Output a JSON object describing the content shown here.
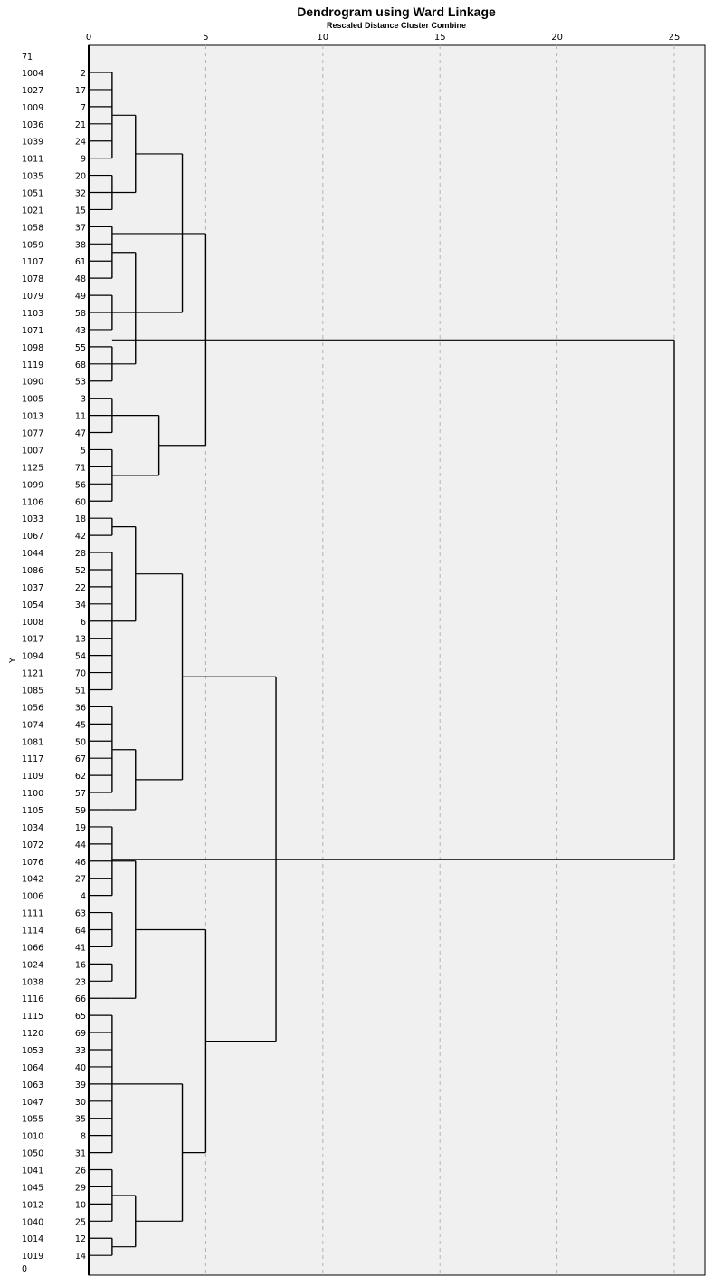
{
  "chart_data": {
    "type": "dendrogram",
    "title": "Dendrogram using Ward Linkage",
    "xlabel": "Rescaled Distance Cluster Combine",
    "ylabel": "Y",
    "xlim": [
      0,
      25
    ],
    "x_ticks": [
      "0",
      "5",
      "10",
      "15",
      "20",
      "25"
    ],
    "y_top_label": "71",
    "y_bottom_label": "0",
    "leaves": [
      {
        "id": "1004",
        "case": "2"
      },
      {
        "id": "1027",
        "case": "17"
      },
      {
        "id": "1009",
        "case": "7"
      },
      {
        "id": "1036",
        "case": "21"
      },
      {
        "id": "1039",
        "case": "24"
      },
      {
        "id": "1011",
        "case": "9"
      },
      {
        "id": "1035",
        "case": "20"
      },
      {
        "id": "1051",
        "case": "32"
      },
      {
        "id": "1021",
        "case": "15"
      },
      {
        "id": "1058",
        "case": "37"
      },
      {
        "id": "1059",
        "case": "38"
      },
      {
        "id": "1107",
        "case": "61"
      },
      {
        "id": "1078",
        "case": "48"
      },
      {
        "id": "1079",
        "case": "49"
      },
      {
        "id": "1103",
        "case": "58"
      },
      {
        "id": "1071",
        "case": "43"
      },
      {
        "id": "1098",
        "case": "55"
      },
      {
        "id": "1119",
        "case": "68"
      },
      {
        "id": "1090",
        "case": "53"
      },
      {
        "id": "1005",
        "case": "3"
      },
      {
        "id": "1013",
        "case": "11"
      },
      {
        "id": "1077",
        "case": "47"
      },
      {
        "id": "1007",
        "case": "5"
      },
      {
        "id": "1125",
        "case": "71"
      },
      {
        "id": "1099",
        "case": "56"
      },
      {
        "id": "1106",
        "case": "60"
      },
      {
        "id": "1033",
        "case": "18"
      },
      {
        "id": "1067",
        "case": "42"
      },
      {
        "id": "1044",
        "case": "28"
      },
      {
        "id": "1086",
        "case": "52"
      },
      {
        "id": "1037",
        "case": "22"
      },
      {
        "id": "1054",
        "case": "34"
      },
      {
        "id": "1008",
        "case": "6"
      },
      {
        "id": "1017",
        "case": "13"
      },
      {
        "id": "1094",
        "case": "54"
      },
      {
        "id": "1121",
        "case": "70"
      },
      {
        "id": "1085",
        "case": "51"
      },
      {
        "id": "1056",
        "case": "36"
      },
      {
        "id": "1074",
        "case": "45"
      },
      {
        "id": "1081",
        "case": "50"
      },
      {
        "id": "1117",
        "case": "67"
      },
      {
        "id": "1109",
        "case": "62"
      },
      {
        "id": "1100",
        "case": "57"
      },
      {
        "id": "1105",
        "case": "59"
      },
      {
        "id": "1034",
        "case": "19"
      },
      {
        "id": "1072",
        "case": "44"
      },
      {
        "id": "1076",
        "case": "46"
      },
      {
        "id": "1042",
        "case": "27"
      },
      {
        "id": "1006",
        "case": "4"
      },
      {
        "id": "1111",
        "case": "63"
      },
      {
        "id": "1114",
        "case": "64"
      },
      {
        "id": "1066",
        "case": "41"
      },
      {
        "id": "1024",
        "case": "16"
      },
      {
        "id": "1038",
        "case": "23"
      },
      {
        "id": "1116",
        "case": "66"
      },
      {
        "id": "1115",
        "case": "65"
      },
      {
        "id": "1120",
        "case": "69"
      },
      {
        "id": "1053",
        "case": "33"
      },
      {
        "id": "1064",
        "case": "40"
      },
      {
        "id": "1063",
        "case": "39"
      },
      {
        "id": "1047",
        "case": "30"
      },
      {
        "id": "1055",
        "case": "35"
      },
      {
        "id": "1010",
        "case": "8"
      },
      {
        "id": "1050",
        "case": "31"
      },
      {
        "id": "1041",
        "case": "26"
      },
      {
        "id": "1045",
        "case": "29"
      },
      {
        "id": "1012",
        "case": "10"
      },
      {
        "id": "1040",
        "case": "25"
      },
      {
        "id": "1014",
        "case": "12"
      },
      {
        "id": "1019",
        "case": "14"
      }
    ],
    "merges": [
      {
        "from": 0,
        "to": 5,
        "height": 1
      },
      {
        "from": 6,
        "to": 8,
        "height": 1
      },
      {
        "from": 2.5,
        "to": 7,
        "height": 2
      },
      {
        "from": 9,
        "to": 12,
        "height": 1
      },
      {
        "from": 13,
        "to": 15,
        "height": 1
      },
      {
        "from": 16,
        "to": 18,
        "height": 1
      },
      {
        "from": 10.5,
        "to": 17,
        "height": 2
      },
      {
        "from": 4.75,
        "to": 14,
        "height": 4
      },
      {
        "from": 19,
        "to": 21,
        "height": 1
      },
      {
        "from": 22,
        "to": 25,
        "height": 1
      },
      {
        "from": 20,
        "to": 23.5,
        "height": 3
      },
      {
        "from": 9.4,
        "to": 21.75,
        "height": 5
      },
      {
        "from": 26,
        "to": 27,
        "height": 1
      },
      {
        "from": 28,
        "to": 36,
        "height": 1
      },
      {
        "from": 26.5,
        "to": 32,
        "height": 2
      },
      {
        "from": 37,
        "to": 42,
        "height": 1
      },
      {
        "from": 39.5,
        "to": 43,
        "height": 2
      },
      {
        "from": 29.25,
        "to": 41.25,
        "height": 4
      },
      {
        "from": 44,
        "to": 48,
        "height": 1
      },
      {
        "from": 49,
        "to": 51,
        "height": 1
      },
      {
        "from": 52,
        "to": 53,
        "height": 1
      },
      {
        "from": 46,
        "to": 54,
        "height": 2
      },
      {
        "from": 55,
        "to": 63,
        "height": 1
      },
      {
        "from": 64,
        "to": 67,
        "height": 1
      },
      {
        "from": 68,
        "to": 69,
        "height": 1
      },
      {
        "from": 65.5,
        "to": 68.5,
        "height": 2
      },
      {
        "from": 59,
        "to": 67,
        "height": 4
      },
      {
        "from": 50,
        "to": 63,
        "height": 5
      },
      {
        "from": 35.25,
        "to": 56.5,
        "height": 8
      },
      {
        "from": 15.6,
        "to": 45.9,
        "height": 25
      }
    ]
  }
}
